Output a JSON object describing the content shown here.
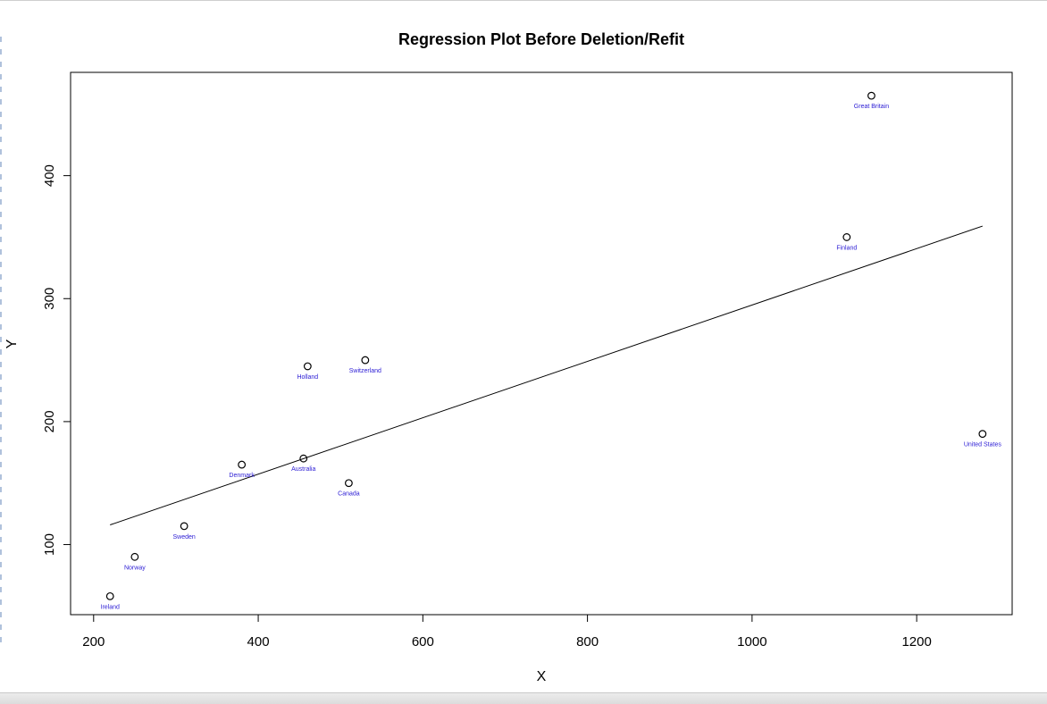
{
  "chart_data": {
    "type": "scatter",
    "title": "Regression Plot Before Deletion/Refit",
    "xlabel": "X",
    "ylabel": "Y",
    "xlim": [
      172,
      1316
    ],
    "ylim": [
      43,
      484
    ],
    "x_ticks": [
      200,
      400,
      600,
      800,
      1000,
      1200
    ],
    "y_ticks": [
      100,
      200,
      300,
      400
    ],
    "grid": false,
    "label_color": "#2a1bd4",
    "points": [
      {
        "label": "Ireland",
        "x": 220,
        "y": 58
      },
      {
        "label": "Norway",
        "x": 250,
        "y": 90
      },
      {
        "label": "Sweden",
        "x": 310,
        "y": 115
      },
      {
        "label": "Denmark",
        "x": 380,
        "y": 165
      },
      {
        "label": "Australia",
        "x": 455,
        "y": 170
      },
      {
        "label": "Holland",
        "x": 460,
        "y": 245
      },
      {
        "label": "Canada",
        "x": 510,
        "y": 150
      },
      {
        "label": "Switzerland",
        "x": 530,
        "y": 250
      },
      {
        "label": "Finland",
        "x": 1115,
        "y": 350
      },
      {
        "label": "Great Britain",
        "x": 1145,
        "y": 465
      },
      {
        "label": "United States",
        "x": 1280,
        "y": 190
      }
    ],
    "regression_line": {
      "x": [
        220,
        1280
      ],
      "y": [
        116,
        359
      ]
    }
  }
}
